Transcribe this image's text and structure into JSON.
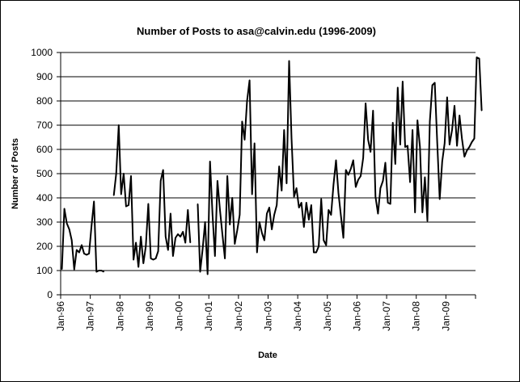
{
  "chart_data": {
    "type": "line",
    "title": "Number of Posts to asa@calvin.edu (1996-2009)",
    "xlabel": "Date",
    "ylabel": "Number of Posts",
    "ylim": [
      0,
      1000
    ],
    "yticks": [
      0,
      100,
      200,
      300,
      400,
      500,
      600,
      700,
      800,
      900,
      1000
    ],
    "xticks": [
      "Jan-96",
      "Jan-97",
      "Jan-98",
      "Jan-99",
      "Jan-00",
      "Jan-01",
      "Jan-02",
      "Jan-03",
      "Jan-04",
      "Jan-05",
      "Jan-06",
      "Jan-07",
      "Jan-08",
      "Jan-09"
    ],
    "grid": "horizontal",
    "x_start": "1996-01",
    "series": [
      {
        "values": [
          105,
          355,
          295,
          270,
          225,
          105,
          185,
          175,
          205,
          170,
          165,
          170,
          285,
          385,
          95,
          100,
          100,
          95,
          null,
          null,
          null,
          410,
          500,
          700,
          415,
          500,
          365,
          370,
          490,
          145,
          215,
          115,
          240,
          130,
          200,
          375,
          150,
          145,
          150,
          180,
          470,
          515,
          240,
          185,
          335,
          160,
          235,
          250,
          240,
          260,
          215,
          350,
          215,
          null,
          null,
          375,
          95,
          190,
          300,
          85,
          550,
          330,
          160,
          470,
          350,
          250,
          150,
          490,
          290,
          400,
          210,
          265,
          330,
          715,
          640,
          800,
          885,
          415,
          625,
          175,
          300,
          255,
          225,
          335,
          360,
          270,
          330,
          370,
          530,
          430,
          680,
          460,
          965,
          645,
          405,
          440,
          360,
          380,
          280,
          380,
          310,
          370,
          175,
          175,
          200,
          395,
          225,
          205,
          350,
          330,
          455,
          555,
          420,
          325,
          235,
          515,
          495,
          520,
          555,
          445,
          475,
          490,
          565,
          790,
          640,
          590,
          760,
          405,
          335,
          440,
          470,
          545,
          380,
          375,
          710,
          540,
          855,
          620,
          880,
          610,
          615,
          465,
          680,
          340,
          720,
          610,
          340,
          485,
          305,
          715,
          865,
          875,
          625,
          395,
          550,
          625,
          815,
          620,
          680,
          780,
          615,
          740,
          645,
          570,
          595,
          610,
          630,
          645,
          980,
          975,
          760
        ]
      }
    ]
  }
}
